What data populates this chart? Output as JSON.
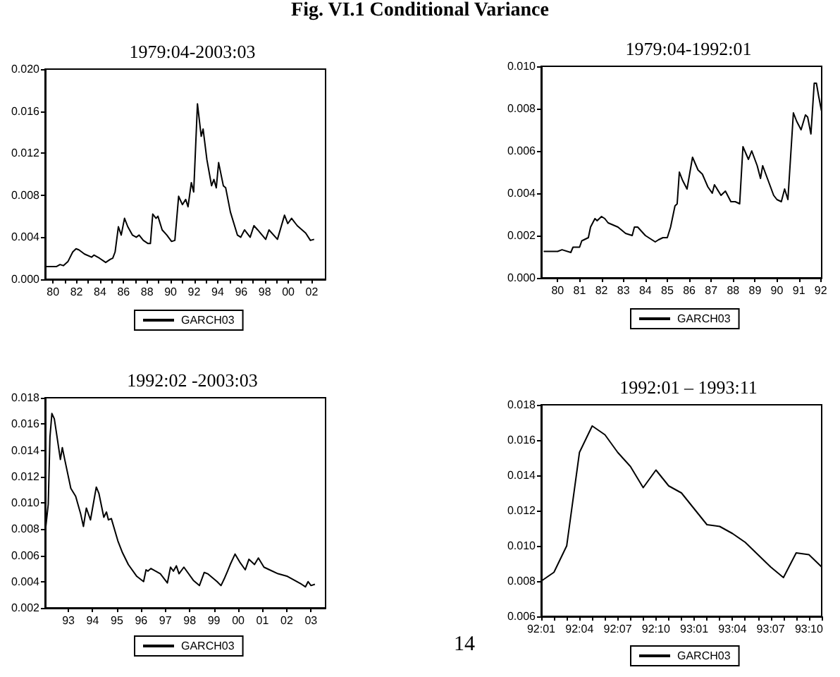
{
  "chart_data": [
    {
      "type": "line",
      "title": "1979:04-2003:03",
      "annotations": [
        "Fig. VI.1 Conditional Variance"
      ],
      "legend": "bottom",
      "grid": false,
      "marker": "none",
      "xlim": [
        1979.33,
        2003.17
      ],
      "xticks": [
        {
          "value": 1980,
          "label": "80"
        },
        {
          "value": 1981,
          "label": null
        },
        {
          "value": 1982,
          "label": "82"
        },
        {
          "value": 1983,
          "label": null
        },
        {
          "value": 1984,
          "label": "84"
        },
        {
          "value": 1985,
          "label": null
        },
        {
          "value": 1986,
          "label": "86"
        },
        {
          "value": 1987,
          "label": null
        },
        {
          "value": 1988,
          "label": "88"
        },
        {
          "value": 1989,
          "label": null
        },
        {
          "value": 1990,
          "label": "90"
        },
        {
          "value": 1991,
          "label": null
        },
        {
          "value": 1992,
          "label": "92"
        },
        {
          "value": 1993,
          "label": null
        },
        {
          "value": 1994,
          "label": "94"
        },
        {
          "value": 1995,
          "label": null
        },
        {
          "value": 1996,
          "label": "96"
        },
        {
          "value": 1997,
          "label": null
        },
        {
          "value": 1998,
          "label": "98"
        },
        {
          "value": 1999,
          "label": null
        },
        {
          "value": 2000,
          "label": "00"
        },
        {
          "value": 2001,
          "label": null
        },
        {
          "value": 2002,
          "label": "02"
        }
      ],
      "ylim": [
        0,
        0.02
      ],
      "yticks": [
        {
          "value": 0,
          "label": "0.000"
        },
        {
          "value": 0.004,
          "label": "0.004"
        },
        {
          "value": 0.008,
          "label": "0.008"
        },
        {
          "value": 0.012,
          "label": "0.012"
        },
        {
          "value": 0.016,
          "label": "0.016"
        },
        {
          "value": 0.02,
          "label": "0.020"
        }
      ],
      "series": [
        {
          "name": "GARCH03",
          "color": "#000000",
          "x": [
            1979.36,
            1980.28,
            1980.6,
            1980.88,
            1981.28,
            1981.68,
            1981.96,
            1982.2,
            1982.68,
            1983.28,
            1983.48,
            1983.96,
            1984.48,
            1984.88,
            1985.08,
            1985.28,
            1985.56,
            1985.8,
            1986.08,
            1986.36,
            1986.76,
            1987.08,
            1987.32,
            1987.68,
            1988.08,
            1988.28,
            1988.48,
            1988.76,
            1988.92,
            1989.28,
            1989.68,
            1990.08,
            1990.36,
            1990.68,
            1991.0,
            1991.28,
            1991.48,
            1991.76,
            1991.96,
            1992.28,
            1992.6,
            1992.76,
            1993.08,
            1993.48,
            1993.68,
            1993.88,
            1994.08,
            1994.48,
            1994.68,
            1995.08,
            1995.68,
            1995.96,
            1996.28,
            1996.76,
            1997.08,
            1997.4,
            1998.08,
            1998.36,
            1999.08,
            1999.68,
            1999.96,
            2000.28,
            2000.76,
            2001.48,
            2001.88,
            2002.2
          ],
          "values": [
            0.0012,
            0.0012,
            0.0014,
            0.0013,
            0.0017,
            0.0026,
            0.0029,
            0.0028,
            0.0024,
            0.0021,
            0.0023,
            0.002,
            0.0016,
            0.0019,
            0.002,
            0.0026,
            0.005,
            0.0042,
            0.0058,
            0.005,
            0.0042,
            0.004,
            0.0042,
            0.0037,
            0.0034,
            0.0034,
            0.0062,
            0.0058,
            0.006,
            0.0047,
            0.0042,
            0.0036,
            0.0037,
            0.0079,
            0.0071,
            0.0076,
            0.0069,
            0.0092,
            0.0083,
            0.0167,
            0.0136,
            0.0143,
            0.0114,
            0.0089,
            0.0095,
            0.0087,
            0.0111,
            0.0089,
            0.0087,
            0.0064,
            0.0042,
            0.004,
            0.0047,
            0.004,
            0.0051,
            0.0047,
            0.0038,
            0.0047,
            0.0038,
            0.0061,
            0.0053,
            0.0058,
            0.0051,
            0.0044,
            0.0037,
            0.0038
          ]
        }
      ]
    },
    {
      "type": "line",
      "title": "1979:04-1992:01",
      "legend": "bottom",
      "grid": false,
      "marker": "none",
      "xlim": [
        1979.25,
        1992.04
      ],
      "xticks": [
        {
          "value": 1980,
          "label": "80"
        },
        {
          "value": 1981,
          "label": "81"
        },
        {
          "value": 1982,
          "label": "82"
        },
        {
          "value": 1983,
          "label": "83"
        },
        {
          "value": 1984,
          "label": "84"
        },
        {
          "value": 1985,
          "label": "85"
        },
        {
          "value": 1986,
          "label": "86"
        },
        {
          "value": 1987,
          "label": "87"
        },
        {
          "value": 1988,
          "label": "88"
        },
        {
          "value": 1989,
          "label": "89"
        },
        {
          "value": 1990,
          "label": "90"
        },
        {
          "value": 1991,
          "label": "91"
        },
        {
          "value": 1992,
          "label": "92"
        }
      ],
      "ylim": [
        0,
        0.01
      ],
      "yticks": [
        {
          "value": 0,
          "label": "0.000"
        },
        {
          "value": 0.002,
          "label": "0.002"
        },
        {
          "value": 0.004,
          "label": "0.004"
        },
        {
          "value": 0.006,
          "label": "0.006"
        },
        {
          "value": 0.008,
          "label": "0.008"
        },
        {
          "value": 0.01,
          "label": "0.010"
        }
      ],
      "series": [
        {
          "name": "GARCH03",
          "color": "#000000",
          "x": [
            1979.36,
            1980.0,
            1980.2,
            1980.6,
            1980.7,
            1981.0,
            1981.1,
            1981.4,
            1981.5,
            1981.7,
            1981.8,
            1982.0,
            1982.15,
            1982.3,
            1982.75,
            1983.1,
            1983.4,
            1983.5,
            1983.65,
            1984.0,
            1984.45,
            1984.6,
            1984.8,
            1985.0,
            1985.15,
            1985.35,
            1985.45,
            1985.55,
            1985.7,
            1985.9,
            1986.15,
            1986.4,
            1986.6,
            1986.85,
            1987.05,
            1987.15,
            1987.45,
            1987.65,
            1987.9,
            1988.1,
            1988.3,
            1988.45,
            1988.7,
            1988.85,
            1989.1,
            1989.25,
            1989.35,
            1989.6,
            1989.85,
            1990.0,
            1990.2,
            1990.35,
            1990.5,
            1990.75,
            1990.9,
            1991.1,
            1991.3,
            1991.4,
            1991.55,
            1991.7,
            1991.8,
            1991.9,
            1992.03
          ],
          "values": [
            0.00125,
            0.00125,
            0.00133,
            0.0012,
            0.00145,
            0.00145,
            0.00175,
            0.0019,
            0.0024,
            0.0028,
            0.0027,
            0.0029,
            0.0028,
            0.0026,
            0.0024,
            0.0021,
            0.002,
            0.0024,
            0.0024,
            0.002,
            0.0017,
            0.0018,
            0.0019,
            0.0019,
            0.0024,
            0.0034,
            0.0035,
            0.005,
            0.0046,
            0.0042,
            0.0057,
            0.0051,
            0.0049,
            0.0043,
            0.004,
            0.0044,
            0.0039,
            0.0041,
            0.0036,
            0.0036,
            0.0035,
            0.0062,
            0.0056,
            0.006,
            0.0053,
            0.0047,
            0.0053,
            0.0046,
            0.0039,
            0.0037,
            0.0036,
            0.0042,
            0.0037,
            0.0078,
            0.0074,
            0.007,
            0.0077,
            0.0076,
            0.0068,
            0.0092,
            0.0092,
            0.0086,
            0.0079
          ]
        }
      ]
    },
    {
      "type": "line",
      "title": "1992:02 -2003:03",
      "legend": "bottom",
      "grid": false,
      "marker": "none",
      "xlim": [
        1992.04,
        2003.6
      ],
      "xticks": [
        {
          "value": 1993,
          "label": "93"
        },
        {
          "value": 1994,
          "label": "94"
        },
        {
          "value": 1995,
          "label": "95"
        },
        {
          "value": 1996,
          "label": "96"
        },
        {
          "value": 1997,
          "label": "97"
        },
        {
          "value": 1998,
          "label": "98"
        },
        {
          "value": 1999,
          "label": "99"
        },
        {
          "value": 2000,
          "label": "00"
        },
        {
          "value": 2001,
          "label": "01"
        },
        {
          "value": 2002,
          "label": "02"
        },
        {
          "value": 2003,
          "label": "03"
        }
      ],
      "ylim": [
        0.002,
        0.018
      ],
      "yticks": [
        {
          "value": 0.002,
          "label": "0.002"
        },
        {
          "value": 0.004,
          "label": "0.004"
        },
        {
          "value": 0.006,
          "label": "0.006"
        },
        {
          "value": 0.008,
          "label": "0.008"
        },
        {
          "value": 0.01,
          "label": "0.010"
        },
        {
          "value": 0.012,
          "label": "0.012"
        },
        {
          "value": 0.014,
          "label": "0.014"
        },
        {
          "value": 0.016,
          "label": "0.016"
        },
        {
          "value": 0.018,
          "label": "0.018"
        }
      ],
      "series": [
        {
          "name": "GARCH03",
          "color": "#000000",
          "x": [
            1992.07,
            1992.17,
            1992.24,
            1992.32,
            1992.42,
            1992.51,
            1992.67,
            1992.75,
            1992.86,
            1993.1,
            1993.3,
            1993.5,
            1993.62,
            1993.74,
            1993.91,
            1994.15,
            1994.26,
            1994.46,
            1994.57,
            1994.65,
            1994.77,
            1995.04,
            1995.23,
            1995.47,
            1995.82,
            1996.1,
            1996.2,
            1996.28,
            1996.4,
            1996.79,
            1997.08,
            1997.21,
            1997.33,
            1997.45,
            1997.56,
            1997.76,
            1998.15,
            1998.4,
            1998.6,
            1998.74,
            1999.13,
            1999.29,
            1999.42,
            1999.56,
            1999.67,
            1999.87,
            2000.06,
            2000.29,
            2000.44,
            2000.67,
            2000.83,
            2001.06,
            2001.29,
            2001.64,
            2002.03,
            2002.32,
            2002.61,
            2002.77,
            2002.88,
            2003.0,
            2003.16
          ],
          "values": [
            0.0082,
            0.0099,
            0.015,
            0.0168,
            0.0164,
            0.0153,
            0.0133,
            0.0142,
            0.0132,
            0.0111,
            0.0105,
            0.0092,
            0.0082,
            0.0096,
            0.0087,
            0.0112,
            0.0107,
            0.0089,
            0.0093,
            0.0087,
            0.0088,
            0.0071,
            0.0062,
            0.0053,
            0.0044,
            0.004,
            0.0049,
            0.0048,
            0.005,
            0.0046,
            0.0039,
            0.0051,
            0.0048,
            0.0052,
            0.0046,
            0.0051,
            0.0041,
            0.0037,
            0.0047,
            0.0046,
            0.004,
            0.0037,
            0.0042,
            0.0048,
            0.0053,
            0.0061,
            0.0055,
            0.0049,
            0.0057,
            0.0053,
            0.0058,
            0.0051,
            0.0049,
            0.0046,
            0.0044,
            0.0041,
            0.0038,
            0.0036,
            0.004,
            0.0037,
            0.0038
          ]
        }
      ]
    },
    {
      "type": "line",
      "title": "1992:01 – 1993:11",
      "annotations": [
        "14"
      ],
      "legend": "bottom",
      "grid": false,
      "marker": "none",
      "categories": [
        "92:01",
        null,
        null,
        "92:04",
        null,
        null,
        "92:07",
        null,
        null,
        "92:10",
        null,
        null,
        "93:01",
        null,
        null,
        "93:04",
        null,
        null,
        "93:07",
        null,
        null,
        "93:10",
        null
      ],
      "ylim": [
        0.006,
        0.018
      ],
      "yticks": [
        {
          "value": 0.006,
          "label": "0.006"
        },
        {
          "value": 0.008,
          "label": "0.008"
        },
        {
          "value": 0.01,
          "label": "0.010"
        },
        {
          "value": 0.012,
          "label": "0.012"
        },
        {
          "value": 0.014,
          "label": "0.014"
        },
        {
          "value": 0.016,
          "label": "0.016"
        },
        {
          "value": 0.018,
          "label": "0.018"
        }
      ],
      "series": [
        {
          "name": "GARCH03",
          "color": "#000000",
          "values": [
            0.008,
            0.0085,
            0.01,
            0.0153,
            0.0168,
            0.0163,
            0.0153,
            0.0145,
            0.0133,
            0.0143,
            0.0134,
            0.013,
            0.0121,
            0.0112,
            0.0111,
            0.0107,
            0.0102,
            0.0095,
            0.0088,
            0.0082,
            0.0096,
            0.0095,
            0.0088
          ]
        }
      ]
    }
  ]
}
